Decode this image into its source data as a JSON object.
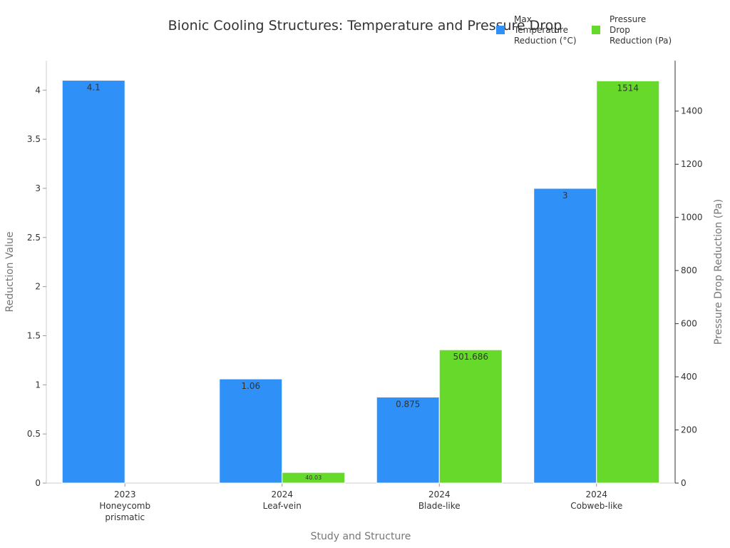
{
  "chart_data": {
    "type": "bar",
    "title": "Bionic Cooling Structures: Temperature and Pressure Drop",
    "xlabel": "Study and Structure",
    "ylabel": "Reduction Value",
    "y2label": "Pressure Drop Reduction (Pa)",
    "categories": [
      [
        "2023",
        "Honeycomb",
        "prismatic"
      ],
      [
        "2024",
        "Leaf-vein"
      ],
      [
        "2024",
        "Blade-like"
      ],
      [
        "2024",
        "Cobweb-like"
      ]
    ],
    "series": [
      {
        "name": "Max Temperature Reduction (°C)",
        "legend_lines": [
          "Max",
          "Temperature",
          "Reduction (°C)"
        ],
        "axis": "left",
        "color": "#2f91f7",
        "values": [
          4.1,
          1.06,
          0.875,
          3
        ],
        "labels": [
          "4.1",
          "1.06",
          "0.875",
          "3"
        ]
      },
      {
        "name": "Pressure Drop Reduction (Pa)",
        "legend_lines": [
          "Pressure",
          "Drop",
          "Reduction (Pa)"
        ],
        "axis": "right",
        "color": "#66d92a",
        "values": [
          null,
          40.03,
          501.686,
          1514
        ],
        "labels": [
          "",
          "40.03",
          "501.686",
          "1514"
        ]
      }
    ],
    "ylim": [
      0,
      4.3
    ],
    "yticks": [
      "0",
      "0.5",
      "1",
      "1.5",
      "2",
      "2.5",
      "3",
      "3.5",
      "4"
    ],
    "y2lim": [
      0,
      1590
    ],
    "y2ticks": [
      "0",
      "200",
      "400",
      "600",
      "800",
      "1000",
      "1200",
      "1400"
    ],
    "legend_position": "top-right",
    "grid": false
  }
}
